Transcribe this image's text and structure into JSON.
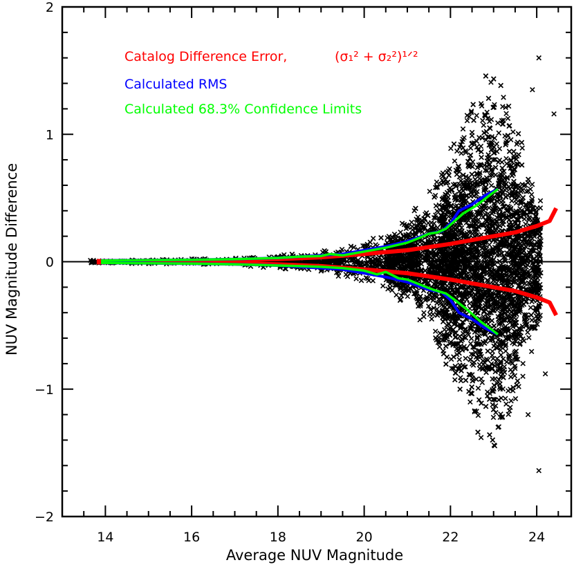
{
  "chart_data": {
    "type": "scatter",
    "xlabel": "Average NUV Magnitude",
    "ylabel": "NUV Magnitude Difference",
    "xlim": [
      13.0,
      24.8
    ],
    "ylim": [
      -2,
      2
    ],
    "x_ticks": [
      "14",
      "16",
      "18",
      "20",
      "22",
      "24"
    ],
    "y_ticks": [
      "2",
      "1",
      "0",
      "−1",
      "−2"
    ],
    "grid": false,
    "legend": [
      {
        "label": "Catalog Difference Error,",
        "formula": "(σ₁² + σ₂²)¹ᐟ²",
        "color": "#ff0000"
      },
      {
        "label": "Calculated RMS",
        "color": "#0000ff"
      },
      {
        "label": "Calculated 68.3% Confidence Limits",
        "color": "#00ff00"
      }
    ],
    "colors": {
      "points": "#000000",
      "catalog_error": "#ff0000",
      "rms": "#0000ff",
      "confidence": "#00ff00"
    },
    "catalog_error": {
      "x": [
        13.8,
        15.0,
        16.0,
        17.0,
        18.0,
        19.0,
        20.0,
        21.0,
        22.0,
        22.5,
        23.0,
        23.5,
        24.0,
        24.3,
        24.45
      ],
      "y": [
        0.005,
        0.006,
        0.008,
        0.012,
        0.02,
        0.035,
        0.06,
        0.09,
        0.14,
        0.17,
        0.2,
        0.23,
        0.28,
        0.32,
        0.42
      ]
    },
    "rms": {
      "x": [
        13.9,
        15.0,
        16.0,
        17.0,
        18.0,
        18.5,
        19.0,
        19.5,
        20.0,
        20.5,
        21.0,
        21.5,
        21.8,
        22.0,
        22.2,
        22.5,
        22.8,
        23.1
      ],
      "y": [
        0.01,
        0.012,
        0.015,
        0.02,
        0.03,
        0.04,
        0.05,
        0.06,
        0.09,
        0.12,
        0.16,
        0.22,
        0.24,
        0.3,
        0.4,
        0.45,
        0.52,
        0.57
      ]
    },
    "confidence_upper": {
      "x": [
        13.9,
        15.0,
        16.0,
        17.0,
        18.0,
        18.5,
        19.0,
        19.2,
        19.5,
        20.0,
        20.5,
        21.0,
        21.3,
        21.5,
        21.7,
        21.9,
        22.1,
        22.3,
        22.6,
        22.9,
        23.1
      ],
      "y": [
        0.01,
        0.012,
        0.015,
        0.02,
        0.03,
        0.04,
        0.045,
        0.06,
        0.05,
        0.08,
        0.11,
        0.15,
        0.19,
        0.22,
        0.23,
        0.26,
        0.32,
        0.38,
        0.44,
        0.52,
        0.57
      ]
    },
    "confidence_lower": {
      "x": [
        13.9,
        15.0,
        16.0,
        17.0,
        18.0,
        18.5,
        19.0,
        19.5,
        20.0,
        20.3,
        20.5,
        20.8,
        21.0,
        21.3,
        21.6,
        21.9,
        22.1,
        22.4,
        22.7,
        23.1
      ],
      "y": [
        -0.01,
        -0.012,
        -0.015,
        -0.02,
        -0.03,
        -0.035,
        -0.04,
        -0.05,
        -0.07,
        -0.1,
        -0.08,
        -0.13,
        -0.14,
        -0.18,
        -0.22,
        -0.25,
        -0.3,
        -0.38,
        -0.47,
        -0.57
      ]
    },
    "scatter_envelope": {
      "x": [
        13.6,
        14.5,
        15.5,
        16.5,
        17.5,
        18.0,
        18.5,
        19.0,
        19.5,
        20.0,
        20.5,
        21.0,
        21.5,
        22.0,
        22.5,
        22.8,
        23.0,
        23.3,
        23.6,
        23.9,
        24.1
      ],
      "spread": [
        0.012,
        0.015,
        0.02,
        0.03,
        0.045,
        0.06,
        0.07,
        0.09,
        0.12,
        0.16,
        0.24,
        0.34,
        0.55,
        0.9,
        1.25,
        1.45,
        1.55,
        1.3,
        1.0,
        0.75,
        0.55
      ]
    },
    "outliers": [
      {
        "x": 24.05,
        "y": 1.6
      },
      {
        "x": 24.05,
        "y": -1.64
      },
      {
        "x": 24.4,
        "y": 1.16
      },
      {
        "x": 23.9,
        "y": 1.35
      },
      {
        "x": 24.2,
        "y": -0.88
      },
      {
        "x": 23.8,
        "y": -1.2
      }
    ]
  }
}
